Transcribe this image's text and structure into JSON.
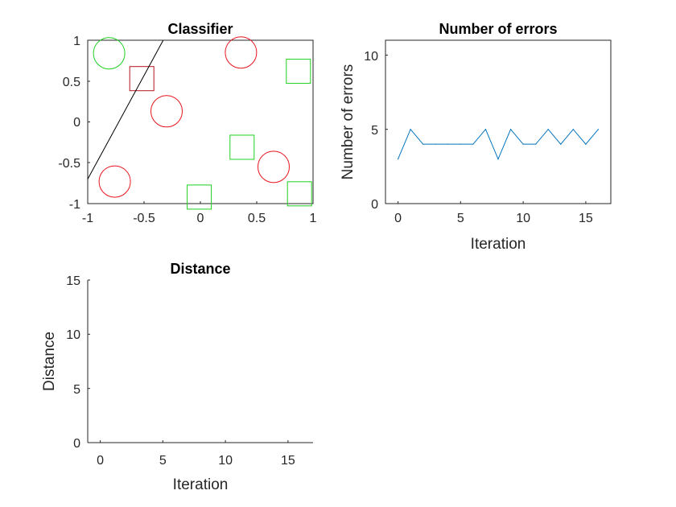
{
  "chart_data": [
    {
      "type": "scatter",
      "title": "Classifier",
      "xlabel": "",
      "ylabel": "",
      "xlim": [
        -1,
        1
      ],
      "ylim": [
        -1,
        1
      ],
      "xticks": [
        "-1",
        "-0.5",
        "0",
        "0.5",
        "1"
      ],
      "yticks": [
        "-1",
        "-0.5",
        "0",
        "0.5",
        "1"
      ],
      "grid": false,
      "colors": {
        "red": "#e8141e",
        "green": "#1ed01e",
        "dark_red": "#b4141e",
        "line": "#000000"
      },
      "series": [
        {
          "marker": "circle",
          "color": "#1ed01e",
          "points": [
            [
              -0.81,
              0.84
            ]
          ]
        },
        {
          "marker": "circle",
          "color": "#e8141e",
          "points": [
            [
              0.36,
              0.85
            ],
            [
              -0.3,
              0.13
            ],
            [
              0.65,
              -0.55
            ],
            [
              -0.76,
              -0.73
            ]
          ]
        },
        {
          "marker": "square",
          "color": "#b4141e",
          "points": [
            [
              -0.52,
              0.53
            ]
          ]
        },
        {
          "marker": "square",
          "color": "#1ed01e",
          "points": [
            [
              0.87,
              0.62
            ],
            [
              0.37,
              -0.31
            ],
            [
              0.88,
              -0.88
            ],
            [
              -0.01,
              -0.92
            ]
          ]
        }
      ],
      "boundary_line": {
        "x": [
          -1,
          -0.33
        ],
        "y": [
          -0.7,
          1
        ]
      }
    },
    {
      "type": "line",
      "title": "Number of errors",
      "xlabel": "Iteration",
      "ylabel": "Number of errors",
      "xlim": [
        -1,
        17
      ],
      "ylim": [
        0,
        11
      ],
      "xticks": [
        "0",
        "5",
        "10",
        "15"
      ],
      "yticks": [
        "0",
        "5",
        "10"
      ],
      "grid": false,
      "line_color": "#0072bd",
      "x": [
        0,
        1,
        2,
        3,
        4,
        5,
        6,
        7,
        8,
        9,
        10,
        11,
        12,
        13,
        14,
        15,
        16
      ],
      "y": [
        3,
        5,
        4,
        4,
        4,
        4,
        4,
        5,
        3,
        5,
        4,
        4,
        5,
        4,
        5,
        4,
        5
      ]
    },
    {
      "type": "line",
      "title": "Distance",
      "xlabel": "Iteration",
      "ylabel": "Distance",
      "xlim": [
        -1,
        17
      ],
      "ylim": [
        0,
        15
      ],
      "xticks": [
        "0",
        "5",
        "10",
        "15"
      ],
      "yticks": [
        "0",
        "5",
        "10",
        "15"
      ],
      "grid": false,
      "x": [],
      "y": []
    }
  ]
}
